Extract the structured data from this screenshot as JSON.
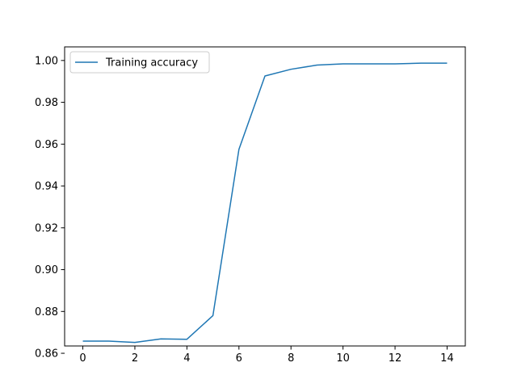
{
  "chart_data": {
    "type": "line",
    "title": "",
    "xlabel": "",
    "ylabel": "",
    "xlim": [
      -0.7,
      14.7
    ],
    "ylim": [
      0.8635,
      1.0065
    ],
    "x_ticks": [
      0,
      2,
      4,
      6,
      8,
      10,
      12,
      14
    ],
    "x_tick_labels": [
      "0",
      "2",
      "4",
      "6",
      "8",
      "10",
      "12",
      "14"
    ],
    "y_ticks": [
      0.86,
      0.88,
      0.9,
      0.92,
      0.94,
      0.96,
      0.98,
      1.0
    ],
    "y_tick_labels": [
      "0.86",
      "0.88",
      "0.90",
      "0.92",
      "0.94",
      "0.96",
      "0.98",
      "1.00"
    ],
    "grid": false,
    "legend_position": "top-left",
    "series": [
      {
        "name": "Training accuracy",
        "color": "#1f77b4",
        "x": [
          0,
          1,
          2,
          3,
          4,
          5,
          6,
          7,
          8,
          9,
          10,
          11,
          12,
          13,
          14
        ],
        "y": [
          0.8658,
          0.8658,
          0.8652,
          0.8669,
          0.8667,
          0.878,
          0.9575,
          0.9926,
          0.9958,
          0.9978,
          0.9984,
          0.9984,
          0.9984,
          0.9987,
          0.9987
        ]
      }
    ]
  }
}
